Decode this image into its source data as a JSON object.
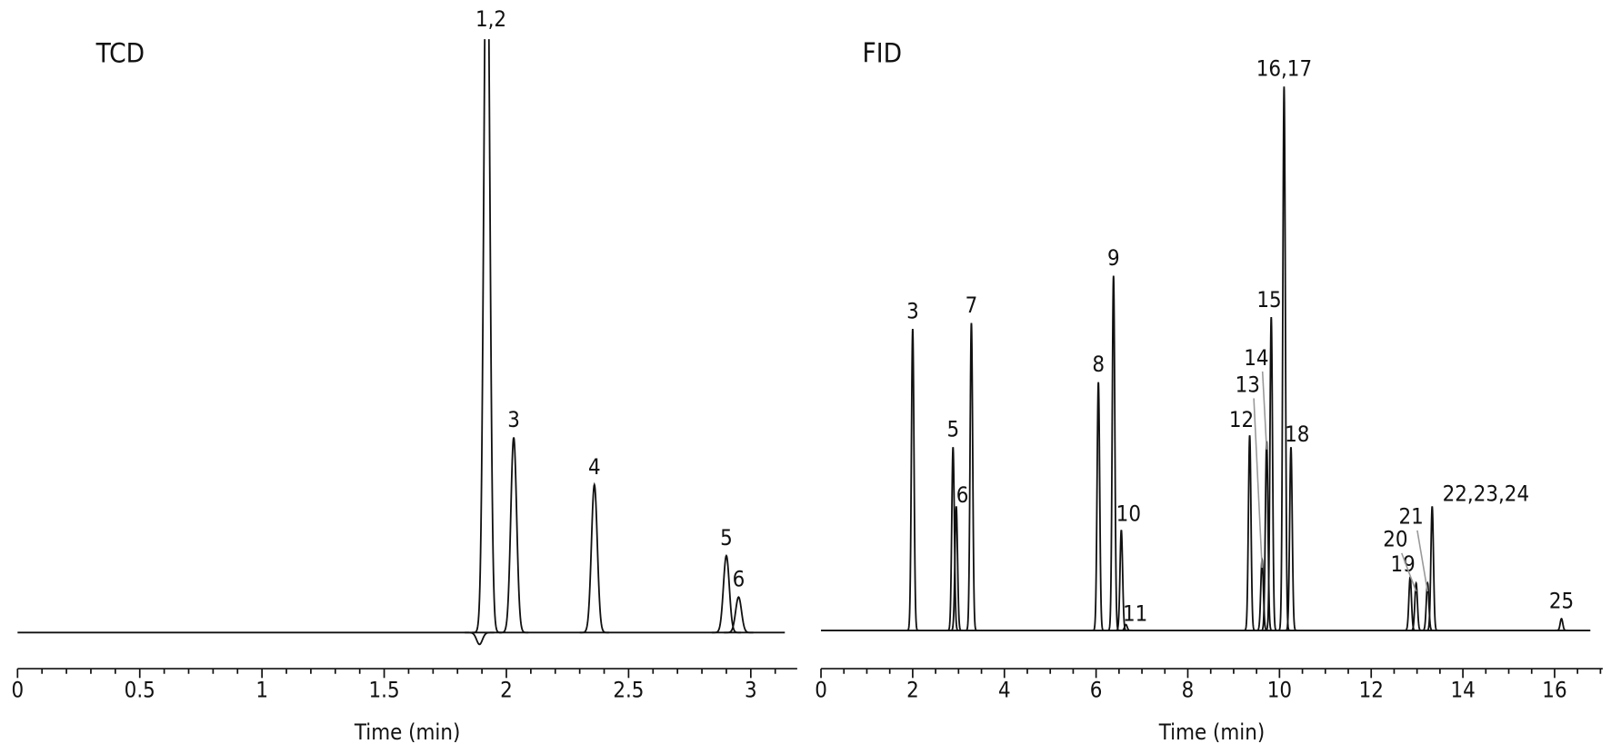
{
  "chart_data": [
    {
      "type": "chromatogram",
      "title": "TCD",
      "xlabel": "Time (min)",
      "xlim": [
        0,
        3.19
      ],
      "xticks": [
        0,
        0.5,
        1,
        1.5,
        2,
        2.5,
        3
      ],
      "ylim": [
        0,
        100
      ],
      "x": [
        1.89,
        1.92,
        2.03,
        2.36,
        2.9,
        2.95
      ],
      "values": [
        -2,
        130,
        33,
        25,
        13,
        6
      ],
      "peak_labels": [
        null,
        "1,2",
        "3",
        "4",
        "5",
        "6"
      ]
    },
    {
      "type": "chromatogram",
      "title": "FID",
      "xlabel": "Time (min)",
      "xlim": [
        0,
        17.05
      ],
      "xticks": [
        0,
        2,
        4,
        6,
        8,
        10,
        12,
        14,
        16
      ],
      "ylim": [
        0,
        100
      ],
      "x": [
        2.0,
        2.88,
        2.95,
        3.28,
        6.05,
        6.38,
        6.55,
        6.65,
        9.35,
        9.62,
        9.72,
        9.82,
        10.1,
        10.25,
        12.85,
        12.98,
        13.23,
        13.33,
        16.15
      ],
      "values": [
        51,
        31,
        21,
        52,
        42,
        60,
        17,
        1,
        33,
        12,
        32,
        53,
        92,
        31,
        9,
        8,
        8,
        21,
        2
      ],
      "peak_labels": [
        "3",
        "5",
        "6",
        "7",
        "8",
        "9",
        "10",
        "11",
        "12",
        "13",
        "14",
        "15",
        "16,17",
        "18",
        "19",
        "20",
        "21",
        "22,23,24",
        "25"
      ]
    }
  ]
}
